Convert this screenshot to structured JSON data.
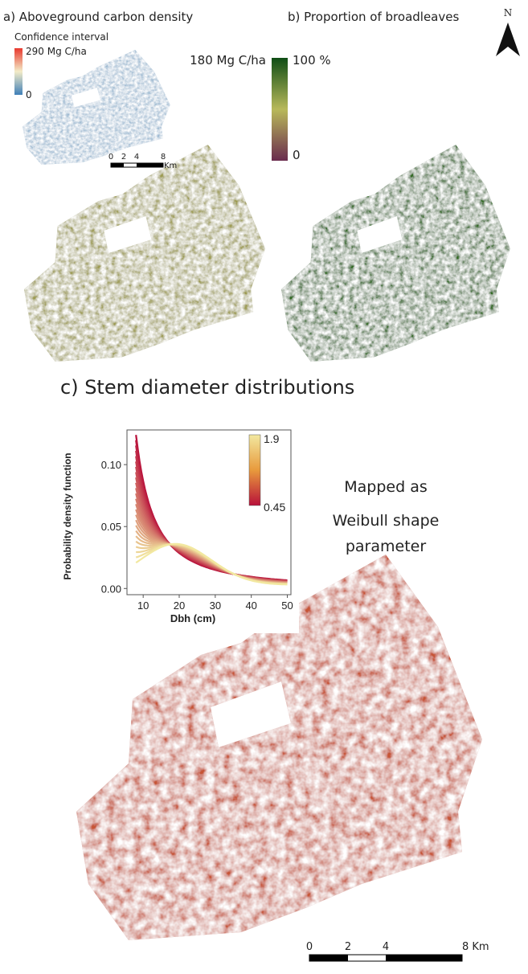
{
  "north": "N",
  "panel_a": {
    "title": "a) Aboveground carbon density",
    "ci_legend": {
      "title": "Confidence interval",
      "max": "290 Mg C/ha",
      "min": "0"
    },
    "legend_max": "180 Mg C/ha",
    "scale_bar": {
      "labels": [
        "0",
        "2",
        "4",
        "8"
      ],
      "unit": "Km"
    }
  },
  "panel_b": {
    "title": "b) Proportion of broadleaves",
    "legend_max": "100 %",
    "legend_min": "0"
  },
  "panel_c": {
    "title": "c) Stem diameter distributions",
    "note": [
      "Mapped as",
      "Weibull shape",
      "parameter"
    ],
    "scale_bar": {
      "labels": [
        "0",
        "2",
        "4",
        "8 Km"
      ]
    }
  },
  "chart_data": {
    "type": "line",
    "xlabel": "Dbh (cm)",
    "ylabel": "Probability density function",
    "xlim": [
      5.5,
      51
    ],
    "ylim": [
      -0.005,
      0.128
    ],
    "xticks": [
      10,
      20,
      30,
      40,
      50
    ],
    "yticks": [
      {
        "value": 0,
        "label": "0.00"
      },
      0.05,
      {
        "value": 0.1,
        "label": "0.10"
      }
    ],
    "colorbar": {
      "min": 0.45,
      "max": 1.9
    }
  }
}
